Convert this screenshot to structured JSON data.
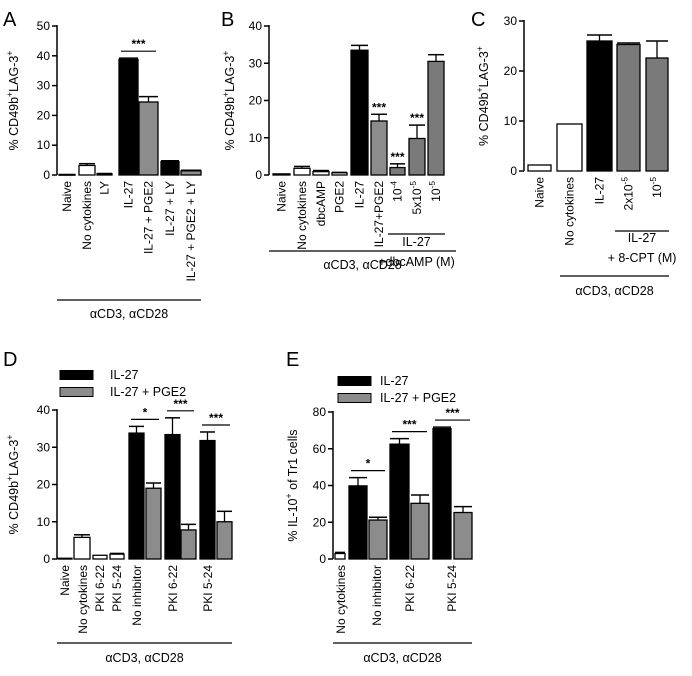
{
  "figure": {
    "colors": {
      "black": "#000000",
      "gray": "#8c8c8c",
      "dark_gray": "#7a7a7a",
      "white": "#ffffff"
    }
  },
  "chart_data": [
    {
      "panel": "A",
      "type": "bar",
      "ylabel_parts": [
        "% CD49b",
        "+",
        "LAG-3",
        "+"
      ],
      "ylim": [
        0,
        50
      ],
      "yticks": [
        0,
        10,
        20,
        30,
        40,
        50
      ],
      "categories": [
        "Naive",
        "No cytokines",
        "LY",
        "IL-27",
        "IL-27 + PGE2",
        "IL-27 + LY",
        "IL-27 + PGE2 + LY"
      ],
      "values": [
        0.2,
        3.2,
        0.4,
        38.8,
        24.5,
        4.5,
        1.4
      ],
      "errors": [
        0,
        0.6,
        0.1,
        0.4,
        1.8,
        0.3,
        0.2
      ],
      "fills": [
        "white",
        "white",
        "white",
        "black",
        "gray",
        "black",
        "gray"
      ],
      "significance": [
        {
          "from": 3,
          "to": 4,
          "label": "***"
        }
      ],
      "groups": [
        {
          "from": 0,
          "to": 6,
          "label": "αCD3, αCD28"
        }
      ]
    },
    {
      "panel": "B",
      "type": "bar",
      "ylabel_parts": [
        "% CD49b",
        "+",
        "LAG-3",
        "+"
      ],
      "ylim": [
        0,
        40
      ],
      "yticks": [
        0,
        10,
        20,
        30,
        40
      ],
      "categories": [
        "Naive",
        "No cytokines",
        "dbcAMP",
        "PGE2",
        "IL-27",
        "IL-27+PGE2",
        "10⁻⁴",
        "5x10⁻⁵",
        "10⁻⁵"
      ],
      "values": [
        0.3,
        1.8,
        0.9,
        0.6,
        33.5,
        14.5,
        2.0,
        9.8,
        30.5
      ],
      "errors": [
        0,
        0.5,
        0.3,
        0.1,
        1.3,
        1.8,
        1.0,
        3.6,
        1.8
      ],
      "fills": [
        "white",
        "white",
        "white",
        "white",
        "black",
        "gray",
        "dark_gray",
        "dark_gray",
        "dark_gray"
      ],
      "bar_labels": [
        "",
        "",
        "",
        "",
        "",
        "***",
        "***",
        "***",
        ""
      ],
      "groups": [
        {
          "from": 6,
          "to": 8,
          "label_lines": [
            "IL-27",
            "+dbcAMP (M)"
          ]
        },
        {
          "from": 0,
          "to": 8,
          "label": "αCD3, αCD28"
        }
      ]
    },
    {
      "panel": "C",
      "type": "bar",
      "ylabel_parts": [
        "% CD49b",
        "+",
        "LAG-3",
        "+"
      ],
      "ylim": [
        0,
        30
      ],
      "yticks": [
        0,
        10,
        20,
        30
      ],
      "categories": [
        "Naive",
        "No cytokines",
        "IL-27",
        "2x10⁻⁵",
        "10⁻⁵"
      ],
      "values": [
        1.2,
        9.4,
        26.0,
        25.3,
        22.6
      ],
      "errors": [
        0,
        0,
        1.2,
        0.3,
        3.4
      ],
      "fills": [
        "white",
        "white",
        "black",
        "dark_gray",
        "dark_gray"
      ],
      "groups": [
        {
          "from": 3,
          "to": 4,
          "label_lines": [
            "IL-27",
            "+ 8-CPT (M)"
          ]
        },
        {
          "from": 0,
          "to": 4,
          "label": "αCD3, αCD28"
        }
      ]
    },
    {
      "panel": "D",
      "type": "bar",
      "ylabel_parts": [
        "% CD49b",
        "+",
        "LAG-3",
        "+"
      ],
      "ylim": [
        0,
        40
      ],
      "yticks": [
        0,
        10,
        20,
        30,
        40
      ],
      "legend": [
        {
          "label": "IL-27",
          "fill": "black"
        },
        {
          "label": "IL-27 + PGE2",
          "fill": "gray"
        }
      ],
      "categories": [
        "Naive",
        "No cytokines",
        "PKI 6-22",
        "PKI 5-24",
        "No inhibitor",
        "PKI 6-22",
        "PKI 5-24"
      ],
      "bars": [
        {
          "value": 0.2,
          "error": 0,
          "fill": "white"
        },
        {
          "value": 5.8,
          "error": 0.7,
          "fill": "white"
        },
        {
          "value": 1.0,
          "error": 0,
          "fill": "white"
        },
        {
          "value": 1.3,
          "error": 0.2,
          "fill": "white"
        },
        {
          "value": 33.8,
          "error": 1.8,
          "fill": "black"
        },
        {
          "value": 19.0,
          "error": 1.4,
          "fill": "gray"
        },
        {
          "value": 33.4,
          "error": 4.5,
          "fill": "black"
        },
        {
          "value": 7.8,
          "error": 1.5,
          "fill": "gray"
        },
        {
          "value": 31.8,
          "error": 2.3,
          "fill": "black"
        },
        {
          "value": 10.0,
          "error": 2.8,
          "fill": "gray"
        }
      ],
      "significance": [
        {
          "from": 4,
          "to": 5,
          "label": "*"
        },
        {
          "from": 6,
          "to": 7,
          "label": "***"
        },
        {
          "from": 8,
          "to": 9,
          "label": "***"
        }
      ],
      "groups": [
        {
          "label": "αCD3, αCD28"
        }
      ]
    },
    {
      "panel": "E",
      "type": "bar",
      "ylabel_parts": [
        "% IL-10",
        "+",
        " of Tr1 cells",
        ""
      ],
      "ylim": [
        0,
        80
      ],
      "yticks": [
        0,
        20,
        40,
        60,
        80
      ],
      "legend": [
        {
          "label": "IL-27",
          "fill": "black"
        },
        {
          "label": "IL-27 + PGE2",
          "fill": "gray"
        }
      ],
      "categories": [
        "No cytokines",
        "No inhibitor",
        "PKI 6-22",
        "PKI 5-24"
      ],
      "bars": [
        {
          "value": 3.0,
          "error": 0.6,
          "fill": "white"
        },
        {
          "value": 39.8,
          "error": 4.5,
          "fill": "black"
        },
        {
          "value": 21.2,
          "error": 1.5,
          "fill": "gray"
        },
        {
          "value": 62.5,
          "error": 3.0,
          "fill": "black"
        },
        {
          "value": 30.3,
          "error": 4.5,
          "fill": "gray"
        },
        {
          "value": 71.0,
          "error": 0.8,
          "fill": "black"
        },
        {
          "value": 25.3,
          "error": 3.2,
          "fill": "gray"
        }
      ],
      "significance": [
        {
          "from": 1,
          "to": 2,
          "label": "*"
        },
        {
          "from": 3,
          "to": 4,
          "label": "***"
        },
        {
          "from": 5,
          "to": 6,
          "label": "***"
        }
      ],
      "groups": [
        {
          "label": "αCD3, αCD28"
        }
      ]
    }
  ]
}
